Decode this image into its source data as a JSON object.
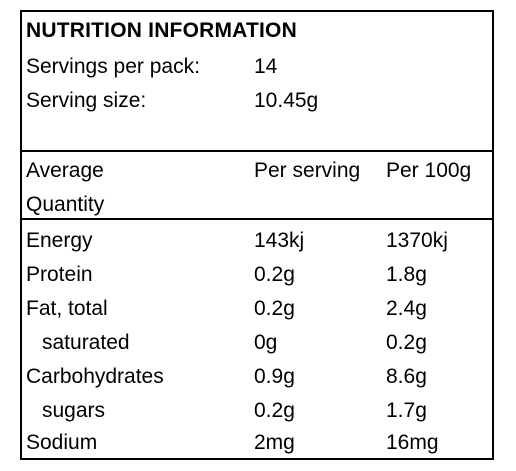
{
  "panel": {
    "title": "NUTRITION INFORMATION",
    "servings_per_pack_label": "Servings per pack:",
    "servings_per_pack_value": "14",
    "serving_size_label": "Serving size:",
    "serving_size_value": "10.45g"
  },
  "table": {
    "header": {
      "quantity_line1": "Average",
      "quantity_line2": "Quantity",
      "per_serving": "Per serving",
      "per_100g": "Per 100g"
    },
    "rows": [
      {
        "name": "Energy",
        "per_serving": "143kj",
        "per_100g": "1370kj"
      },
      {
        "name": "Protein",
        "per_serving": "0.2g",
        "per_100g": "1.8g"
      },
      {
        "name": "Fat, total",
        "per_serving": "0.2g",
        "per_100g": "2.4g"
      },
      {
        "name": "saturated",
        "per_serving": "0g",
        "per_100g": "0.2g"
      },
      {
        "name": "Carbohydrates",
        "per_serving": "0.9g",
        "per_100g": "8.6g"
      },
      {
        "name": "sugars",
        "per_serving": "0.2g",
        "per_100g": "1.7g"
      },
      {
        "name": "Sodium",
        "per_serving": "2mg",
        "per_100g": "16mg"
      }
    ]
  }
}
